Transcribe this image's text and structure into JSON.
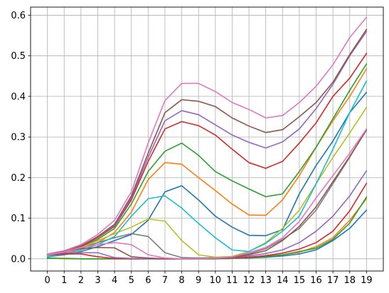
{
  "chart_data": {
    "type": "line",
    "title": "",
    "xlabel": "",
    "ylabel": "",
    "x": [
      0,
      1,
      2,
      3,
      4,
      5,
      6,
      7,
      8,
      9,
      10,
      11,
      12,
      13,
      14,
      15,
      16,
      17,
      18,
      19
    ],
    "xlim": [
      -1,
      20
    ],
    "ylim": [
      -0.03,
      0.62
    ],
    "x_ticks": [
      "0",
      "1",
      "2",
      "3",
      "4",
      "5",
      "6",
      "7",
      "8",
      "9",
      "10",
      "11",
      "12",
      "13",
      "14",
      "15",
      "16",
      "17",
      "18",
      "19"
    ],
    "y_ticks": [
      0.0,
      0.1,
      0.2,
      0.3,
      0.4,
      0.5,
      0.6
    ],
    "y_tick_labels": [
      "0.0",
      "0.1",
      "0.2",
      "0.3",
      "0.4",
      "0.5",
      "0.6"
    ],
    "grid": true,
    "legend": "none",
    "series": [
      {
        "color": "#1f77b4",
        "values": [
          0.005,
          0.01,
          0.018,
          0.03,
          0.045,
          0.06,
          0.095,
          0.165,
          0.18,
          0.145,
          0.105,
          0.078,
          0.058,
          0.057,
          0.072,
          0.16,
          0.23,
          0.29,
          0.36,
          0.41
        ]
      },
      {
        "color": "#ff7f0e",
        "values": [
          0.008,
          0.015,
          0.025,
          0.04,
          0.065,
          0.115,
          0.195,
          0.237,
          0.233,
          0.2,
          0.168,
          0.135,
          0.108,
          0.107,
          0.145,
          0.205,
          0.275,
          0.34,
          0.4,
          0.468
        ]
      },
      {
        "color": "#2ca02c",
        "values": [
          0.008,
          0.016,
          0.028,
          0.048,
          0.075,
          0.135,
          0.215,
          0.265,
          0.285,
          0.255,
          0.215,
          0.192,
          0.172,
          0.153,
          0.16,
          0.215,
          0.275,
          0.345,
          0.415,
          0.48
        ]
      },
      {
        "color": "#d62728",
        "values": [
          0.01,
          0.017,
          0.03,
          0.052,
          0.08,
          0.145,
          0.24,
          0.32,
          0.338,
          0.328,
          0.305,
          0.27,
          0.237,
          0.223,
          0.24,
          0.285,
          0.335,
          0.4,
          0.445,
          0.506
        ]
      },
      {
        "color": "#9467bd",
        "values": [
          0.01,
          0.018,
          0.032,
          0.054,
          0.082,
          0.15,
          0.25,
          0.34,
          0.365,
          0.355,
          0.33,
          0.305,
          0.287,
          0.273,
          0.288,
          0.32,
          0.37,
          0.43,
          0.5,
          0.56
        ]
      },
      {
        "color": "#8c564b",
        "values": [
          0.01,
          0.018,
          0.032,
          0.055,
          0.085,
          0.155,
          0.26,
          0.36,
          0.392,
          0.388,
          0.375,
          0.347,
          0.327,
          0.311,
          0.318,
          0.35,
          0.385,
          0.435,
          0.503,
          0.565
        ]
      },
      {
        "color": "#e377c2",
        "values": [
          0.012,
          0.02,
          0.035,
          0.06,
          0.095,
          0.165,
          0.285,
          0.39,
          0.432,
          0.432,
          0.412,
          0.385,
          0.368,
          0.347,
          0.353,
          0.385,
          0.425,
          0.478,
          0.545,
          0.595
        ]
      },
      {
        "color": "#7f7f7f",
        "values": [
          0.01,
          0.018,
          0.028,
          0.04,
          0.052,
          0.062,
          0.055,
          0.015,
          0.003,
          0.002,
          0.003,
          0.005,
          0.012,
          0.025,
          0.048,
          0.075,
          0.12,
          0.185,
          0.25,
          0.32
        ]
      },
      {
        "color": "#bcbd22",
        "values": [
          0.008,
          0.015,
          0.028,
          0.045,
          0.062,
          0.078,
          0.098,
          0.093,
          0.045,
          0.01,
          0.004,
          0.006,
          0.018,
          0.04,
          0.075,
          0.12,
          0.185,
          0.25,
          0.31,
          0.373
        ]
      },
      {
        "color": "#17becf",
        "values": [
          0.006,
          0.012,
          0.022,
          0.035,
          0.055,
          0.105,
          0.148,
          0.155,
          0.125,
          0.087,
          0.052,
          0.022,
          0.018,
          0.038,
          0.068,
          0.105,
          0.185,
          0.27,
          0.36,
          0.438
        ]
      },
      {
        "color": "#1f77b4",
        "values": [
          0.001,
          0.001,
          0.0,
          0.0,
          0.0,
          0.0,
          0.0,
          0.0,
          0.0,
          0.0,
          0.0,
          0.001,
          0.002,
          0.004,
          0.007,
          0.012,
          0.022,
          0.045,
          0.075,
          0.12
        ]
      },
      {
        "color": "#ff7f0e",
        "values": [
          0.002,
          0.0,
          0.0,
          0.0,
          0.0,
          0.0,
          0.0,
          0.0,
          0.0,
          0.0,
          0.0,
          0.001,
          0.003,
          0.006,
          0.01,
          0.016,
          0.03,
          0.052,
          0.095,
          0.148
        ]
      },
      {
        "color": "#2ca02c",
        "values": [
          0.002,
          0.001,
          0.0,
          0.0,
          0.0,
          0.0,
          0.0,
          0.0,
          0.0,
          0.0,
          0.0,
          0.001,
          0.003,
          0.006,
          0.01,
          0.018,
          0.026,
          0.048,
          0.088,
          0.152
        ]
      },
      {
        "color": "#d62728",
        "values": [
          0.01,
          0.012,
          0.012,
          0.005,
          0.001,
          0.0,
          0.0,
          0.0,
          0.0,
          0.0,
          0.001,
          0.002,
          0.004,
          0.008,
          0.014,
          0.024,
          0.04,
          0.068,
          0.118,
          0.186
        ]
      },
      {
        "color": "#9467bd",
        "values": [
          0.01,
          0.015,
          0.015,
          0.015,
          0.003,
          0.001,
          0.0,
          0.0,
          0.0,
          0.0,
          0.001,
          0.003,
          0.007,
          0.013,
          0.022,
          0.04,
          0.068,
          0.105,
          0.155,
          0.217
        ]
      },
      {
        "color": "#8c564b",
        "values": [
          0.01,
          0.018,
          0.025,
          0.028,
          0.027,
          0.005,
          0.002,
          0.0,
          0.0,
          0.0,
          0.002,
          0.004,
          0.01,
          0.02,
          0.045,
          0.08,
          0.128,
          0.19,
          0.252,
          0.317
        ]
      },
      {
        "color": "#e377c2",
        "values": [
          0.01,
          0.017,
          0.028,
          0.035,
          0.04,
          0.035,
          0.01,
          0.002,
          0.0,
          0.0,
          0.002,
          0.005,
          0.015,
          0.028,
          0.052,
          0.092,
          0.15,
          0.205,
          0.26,
          0.32
        ]
      }
    ]
  }
}
